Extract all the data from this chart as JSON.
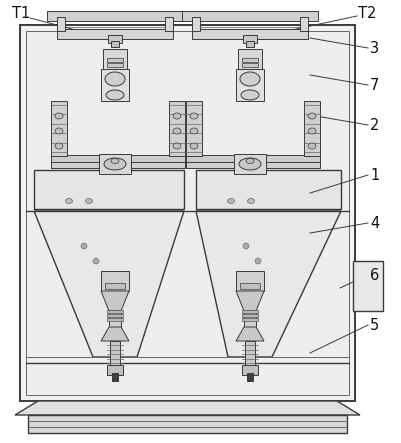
{
  "bg_color": "#ffffff",
  "line_color": "#3a3a3a",
  "mid_line": "#666666",
  "light_line": "#888888",
  "lighter_line": "#aaaaaa",
  "fill_outer": "#f0f0f0",
  "fill_inner": "#e8e8e8",
  "fill_mid": "#d8d8d8",
  "fill_dark": "#c8c8c8",
  "figsize": [
    4.01,
    4.43
  ],
  "dpi": 100
}
